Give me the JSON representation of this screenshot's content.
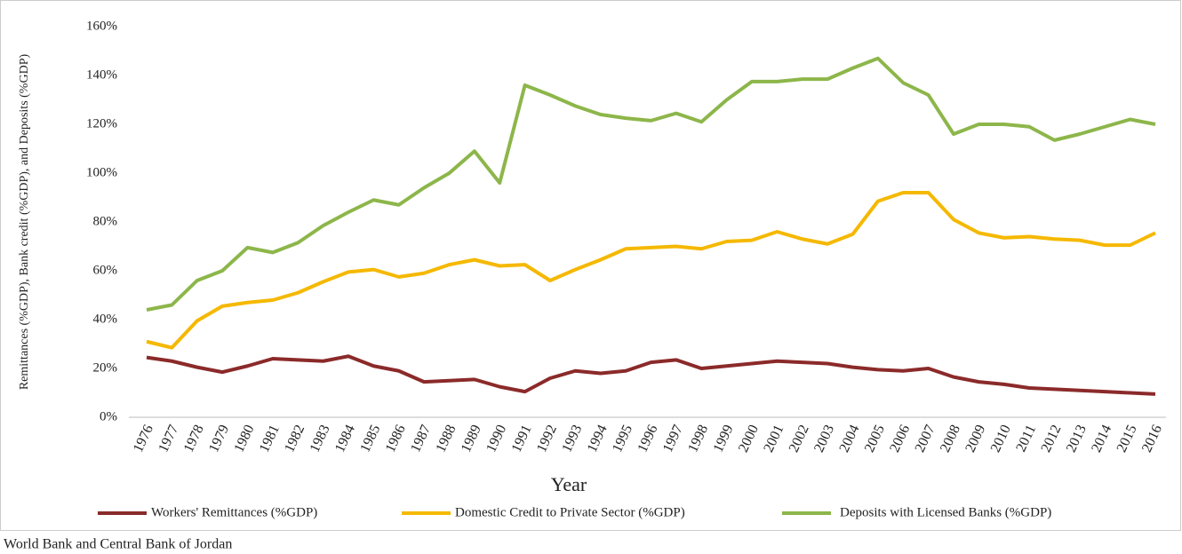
{
  "chart_data": {
    "type": "line",
    "ylabel": "Remittances (%GDP), Bank credit (%GDP), and Deposits (%GDP)",
    "xlabel": "Year",
    "caption": "World Bank and Central Bank of Jordan",
    "categories": [
      "1976",
      "1977",
      "1978",
      "1979",
      "1980",
      "1981",
      "1982",
      "1983",
      "1984",
      "1985",
      "1986",
      "1987",
      "1988",
      "1989",
      "1990",
      "1991",
      "1992",
      "1993",
      "1994",
      "1995",
      "1996",
      "1997",
      "1998",
      "1999",
      "2000",
      "2001",
      "2002",
      "2003",
      "2004",
      "2005",
      "2006",
      "2007",
      "2008",
      "2009",
      "2010",
      "2011",
      "2012",
      "2013",
      "2014",
      "2015",
      "2016"
    ],
    "series": [
      {
        "name": "Workers' Remittances (%GDP)",
        "color": "#8b2a2a",
        "values": [
          24.5,
          23,
          20.5,
          18.5,
          21,
          24,
          23.5,
          23,
          25,
          21,
          19,
          14.5,
          15,
          15.5,
          12.5,
          10.5,
          16,
          19,
          18,
          19,
          22.5,
          23.5,
          20,
          21,
          22,
          23,
          22.5,
          22,
          20.5,
          19.5,
          19,
          20,
          16.5,
          14.5,
          13.5,
          12,
          11.5,
          11,
          10.5,
          10,
          9.5
        ]
      },
      {
        "name": "Domestic Credit to Private Sector (%GDP)",
        "color": "#f5b800",
        "values": [
          31,
          28.5,
          39.5,
          45.5,
          47,
          48,
          51,
          55.5,
          59.5,
          60.5,
          57.5,
          59,
          62.5,
          64.5,
          62,
          62.5,
          56,
          60.5,
          64.5,
          69,
          69.5,
          70,
          69,
          72,
          72.5,
          76,
          73,
          71,
          75,
          88.5,
          92,
          92,
          81,
          75.5,
          73.5,
          74,
          73,
          72.5,
          70.5,
          70.5,
          75.5
        ]
      },
      {
        "name": "Deposits with Licensed Banks (%GDP)",
        "color": "#8db64a",
        "values": [
          44,
          46,
          56,
          60,
          69.5,
          67.5,
          71.5,
          78.5,
          84,
          89,
          87,
          94,
          100,
          109,
          96,
          136,
          132,
          127.5,
          124,
          122.5,
          121.5,
          124.5,
          121,
          130,
          137.5,
          137.5,
          138.5,
          138.5,
          143,
          147,
          137,
          132,
          116,
          120,
          120,
          119,
          113.5,
          116,
          119,
          122,
          120
        ]
      }
    ],
    "ylim": [
      0,
      160
    ],
    "yticks": [
      {
        "value": 0,
        "label": "0%"
      },
      {
        "value": 20,
        "label": "20%"
      },
      {
        "value": 40,
        "label": "40%"
      },
      {
        "value": 60,
        "label": "60%"
      },
      {
        "value": 80,
        "label": "80%"
      },
      {
        "value": 100,
        "label": "100%"
      },
      {
        "value": 120,
        "label": "120%"
      },
      {
        "value": 140,
        "label": "140%"
      },
      {
        "value": 160,
        "label": "160%"
      }
    ],
    "grid": false
  }
}
